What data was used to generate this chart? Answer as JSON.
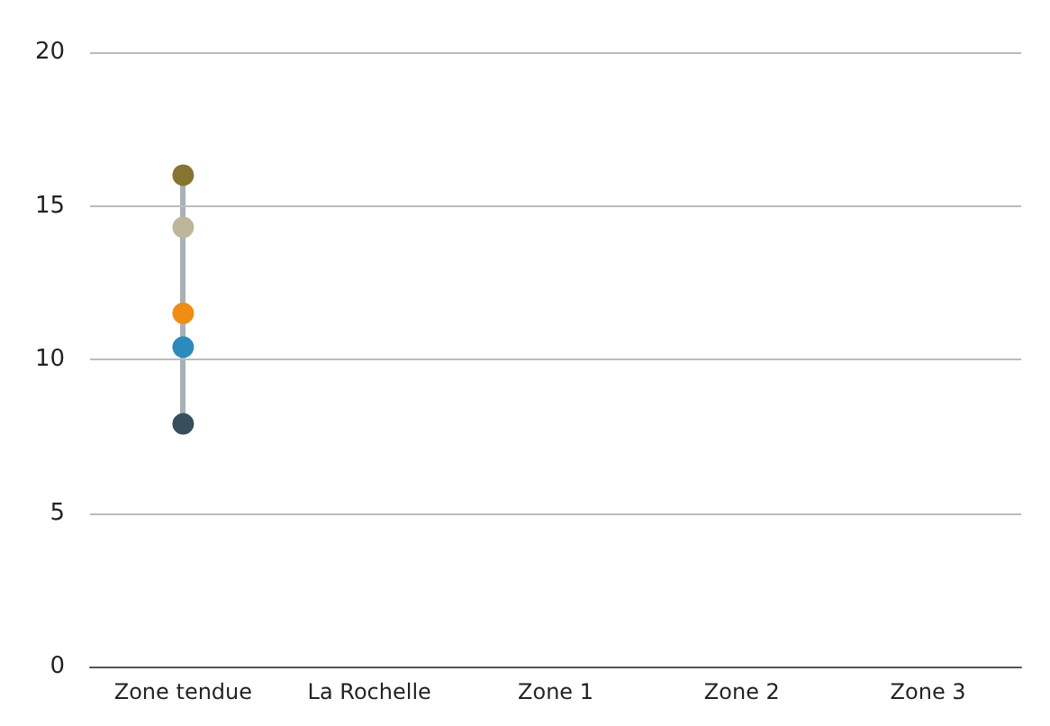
{
  "chart_data": {
    "type": "scatter",
    "categories": [
      "Zone tendue",
      "La Rochelle",
      "Zone 1",
      "Zone 2",
      "Zone 3"
    ],
    "series": [
      {
        "color": "#364f5a",
        "values": [
          7.9,
          null,
          null,
          null,
          null
        ]
      },
      {
        "color": "#2b8bbd",
        "values": [
          10.4,
          null,
          null,
          null,
          null
        ]
      },
      {
        "color": "#ef8d12",
        "values": [
          11.5,
          null,
          null,
          null,
          null
        ]
      },
      {
        "color": "#bdb69c",
        "values": [
          14.3,
          null,
          null,
          null,
          null
        ]
      },
      {
        "color": "#857531",
        "values": [
          16,
          null,
          null,
          null,
          null
        ]
      }
    ],
    "ylim": [
      0,
      20
    ],
    "yticks": [
      0,
      5,
      10,
      15,
      20
    ],
    "grid": "y",
    "marker": "circle"
  }
}
